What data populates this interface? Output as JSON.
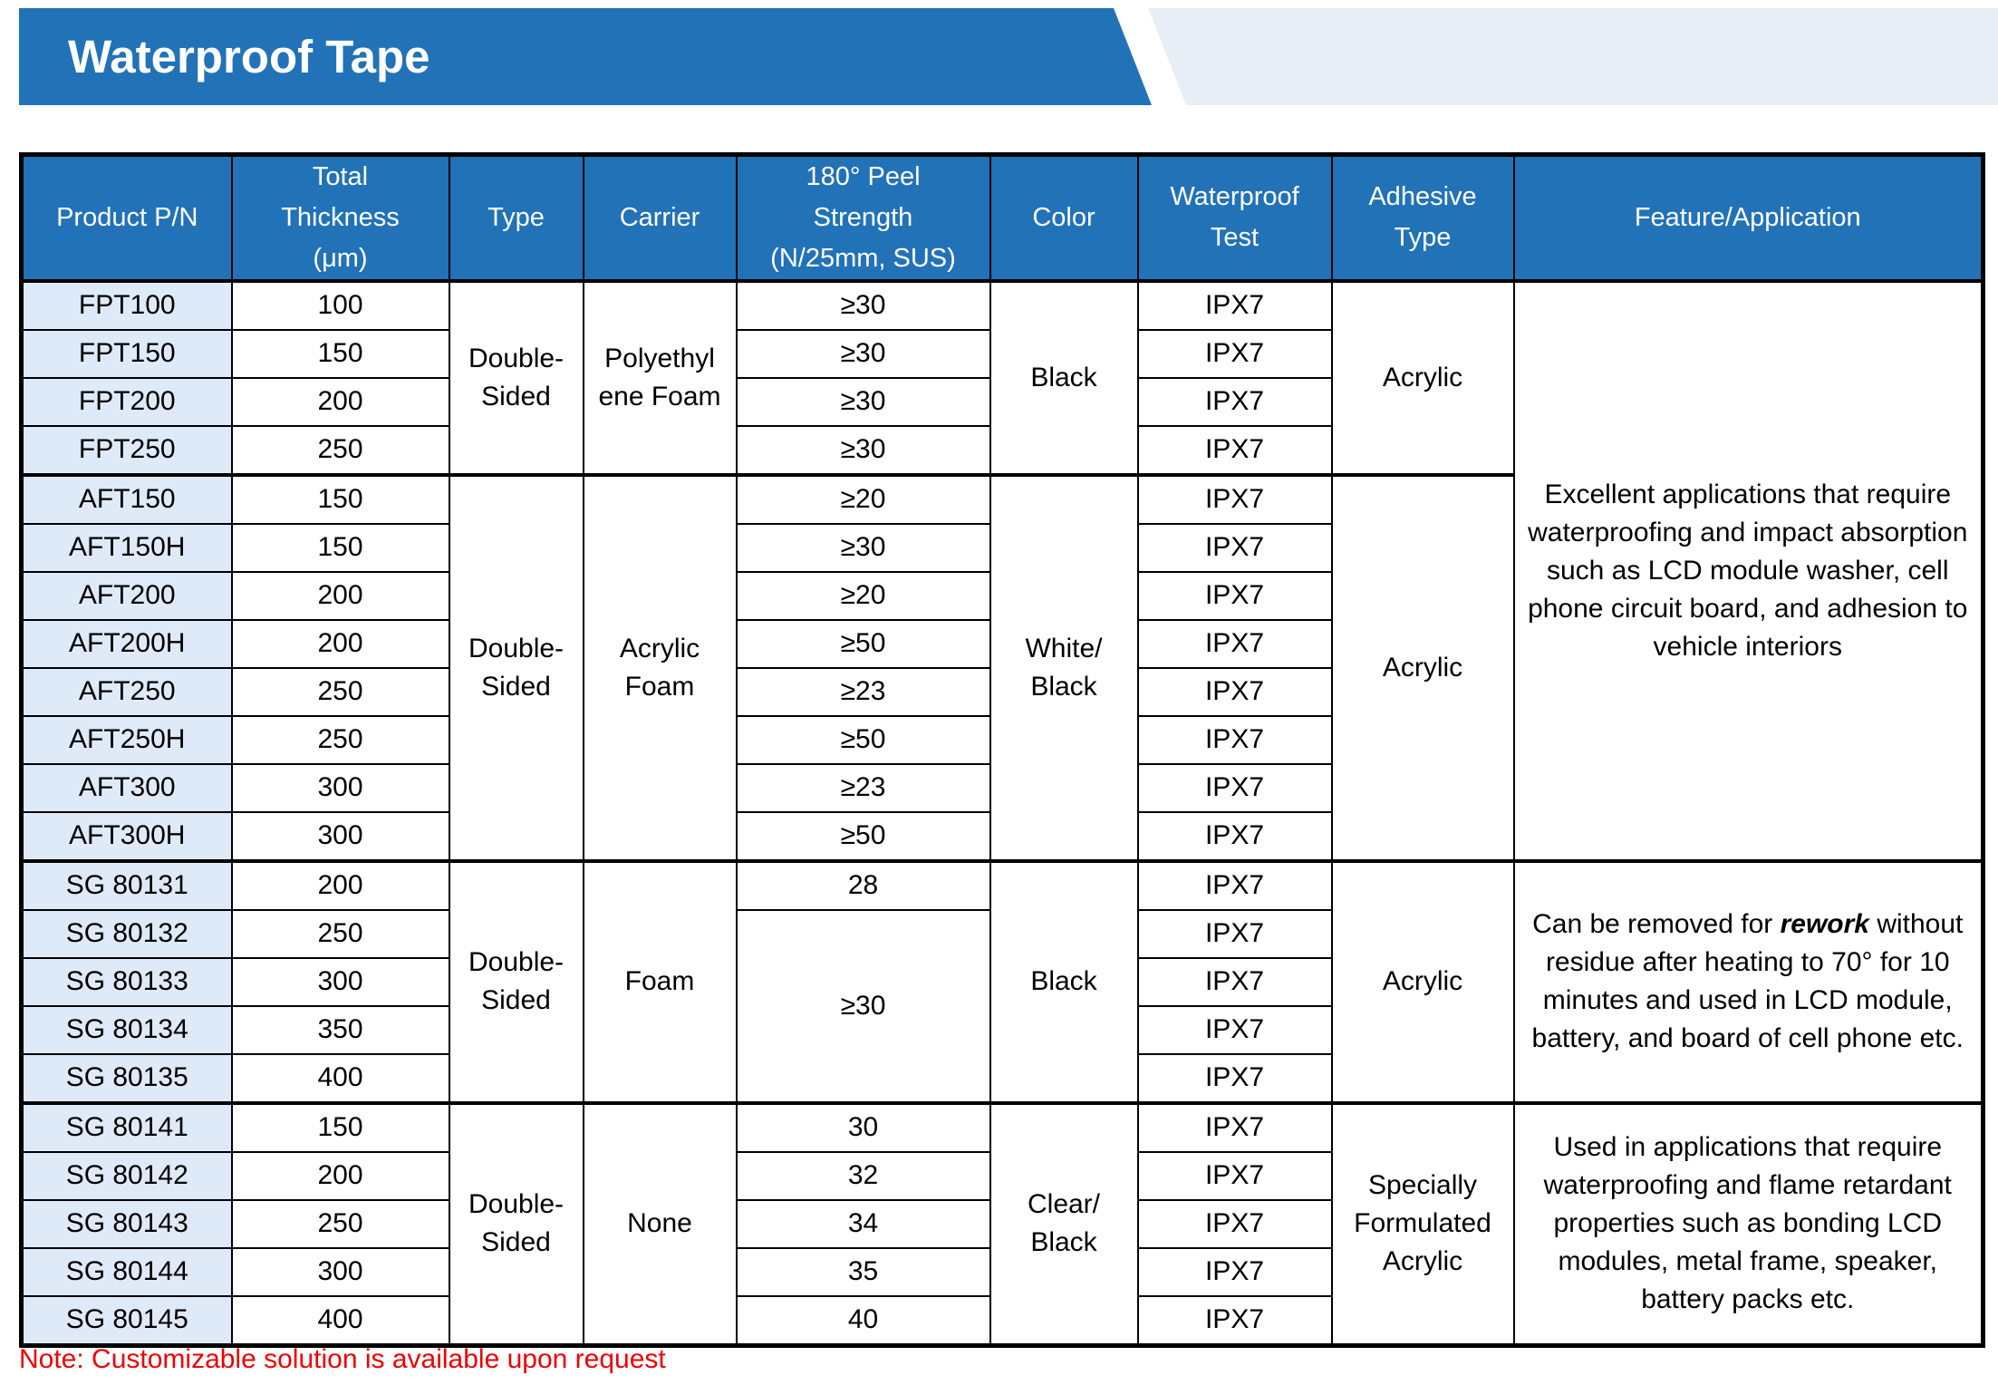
{
  "banner": {
    "title": "Waterproof Tape"
  },
  "colors": {
    "banner_blue": "#2272B8",
    "banner_light_blue": "#E8EEF6",
    "header_blue": "#2272B8",
    "product_cell_bg": "#DEEAF7",
    "note_red": "#EE0000",
    "border_black": "#000000"
  },
  "table": {
    "headers": [
      {
        "id": "product_pn",
        "lines": [
          "Product P/N"
        ]
      },
      {
        "id": "total_thickness",
        "lines": [
          "Total",
          "Thickness",
          "(μm)"
        ]
      },
      {
        "id": "type",
        "lines": [
          "Type"
        ]
      },
      {
        "id": "carrier",
        "lines": [
          "Carrier"
        ]
      },
      {
        "id": "peel_strength",
        "lines": [
          "180° Peel",
          "Strength",
          "(N/25mm, SUS)"
        ]
      },
      {
        "id": "color",
        "lines": [
          "Color"
        ]
      },
      {
        "id": "waterproof_test",
        "lines": [
          "Waterproof",
          "Test"
        ]
      },
      {
        "id": "adhesive_type",
        "lines": [
          "Adhesive",
          "Type"
        ]
      },
      {
        "id": "feature_application",
        "lines": [
          "Feature/Application"
        ]
      }
    ],
    "groups": [
      {
        "type": "Double-Sided",
        "carrier_lines": [
          "Polyethyl",
          "ene Foam"
        ],
        "color_lines": [
          "Black"
        ],
        "adhesive_lines": [
          "Acrylic"
        ],
        "rows": [
          {
            "pn": "FPT100",
            "thickness": "100",
            "peel": "≥30",
            "test": "IPX7"
          },
          {
            "pn": "FPT150",
            "thickness": "150",
            "peel": "≥30",
            "test": "IPX7"
          },
          {
            "pn": "FPT200",
            "thickness": "200",
            "peel": "≥30",
            "test": "IPX7"
          },
          {
            "pn": "FPT250",
            "thickness": "250",
            "peel": "≥30",
            "test": "IPX7"
          }
        ]
      },
      {
        "type": "Double-Sided",
        "carrier_lines": [
          "Acrylic",
          "Foam"
        ],
        "color_lines": [
          "White/",
          "Black"
        ],
        "adhesive_lines": [
          "Acrylic"
        ],
        "rows": [
          {
            "pn": "AFT150",
            "thickness": "150",
            "peel": "≥20",
            "test": "IPX7"
          },
          {
            "pn": "AFT150H",
            "thickness": "150",
            "peel": "≥30",
            "test": "IPX7"
          },
          {
            "pn": "AFT200",
            "thickness": "200",
            "peel": "≥20",
            "test": "IPX7"
          },
          {
            "pn": "AFT200H",
            "thickness": "200",
            "peel": "≥50",
            "test": "IPX7"
          },
          {
            "pn": "AFT250",
            "thickness": "250",
            "peel": "≥23",
            "test": "IPX7"
          },
          {
            "pn": "AFT250H",
            "thickness": "250",
            "peel": "≥50",
            "test": "IPX7"
          },
          {
            "pn": "AFT300",
            "thickness": "300",
            "peel": "≥23",
            "test": "IPX7"
          },
          {
            "pn": "AFT300H",
            "thickness": "300",
            "peel": "≥50",
            "test": "IPX7"
          }
        ]
      },
      {
        "type": "Double-Sided",
        "carrier_lines": [
          "Foam"
        ],
        "color_lines": [
          "Black"
        ],
        "adhesive_lines": [
          "Acrylic"
        ],
        "merged_peel": "≥30",
        "rows": [
          {
            "pn": "SG 80131",
            "thickness": "200",
            "peel": "28",
            "test": "IPX7"
          },
          {
            "pn": "SG 80132",
            "thickness": "250",
            "test": "IPX7"
          },
          {
            "pn": "SG 80133",
            "thickness": "300",
            "test": "IPX7"
          },
          {
            "pn": "SG 80134",
            "thickness": "350",
            "test": "IPX7"
          },
          {
            "pn": "SG 80135",
            "thickness": "400",
            "test": "IPX7"
          }
        ]
      },
      {
        "type": "Double-Sided",
        "carrier_lines": [
          "None"
        ],
        "color_lines": [
          "Clear/",
          "Black"
        ],
        "adhesive_lines": [
          "Specially",
          "Formulated",
          "Acrylic"
        ],
        "rows": [
          {
            "pn": "SG 80141",
            "thickness": "150",
            "peel": "30",
            "test": "IPX7"
          },
          {
            "pn": "SG 80142",
            "thickness": "200",
            "peel": "32",
            "test": "IPX7"
          },
          {
            "pn": "SG 80143",
            "thickness": "250",
            "peel": "34",
            "test": "IPX7"
          },
          {
            "pn": "SG 80144",
            "thickness": "300",
            "peel": "35",
            "test": "IPX7"
          },
          {
            "pn": "SG 80145",
            "thickness": "400",
            "peel": "40",
            "test": "IPX7"
          }
        ]
      }
    ],
    "features": {
      "groups_1_2": "Excellent applications that require waterproofing and impact absorption such as LCD module washer, cell phone circuit board, and adhesion to vehicle interiors",
      "group_3_prefix": "Can be removed for ",
      "group_3_emphasis": "rework",
      "group_3_rest": " without residue after heating to 70° for 10 minutes and used in LCD module, battery, and board of cell phone etc.",
      "group_4": "Used in applications that require waterproofing and flame retardant properties such as bonding LCD modules, metal frame, speaker, battery packs etc."
    }
  },
  "note": "Note: Customizable solution is available upon request"
}
